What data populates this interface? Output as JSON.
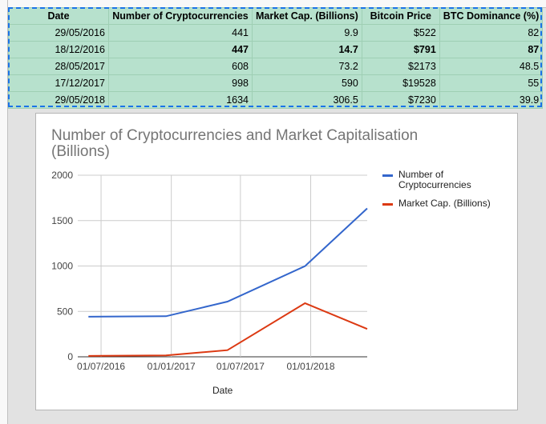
{
  "table": {
    "headers": [
      "Date",
      "Number of Cryptocurrencies",
      "Market Cap. (Billions)",
      "Bitcoin Price",
      "BTC Dominance (%)"
    ],
    "rows": [
      {
        "date": "29/05/2016",
        "num": "441",
        "mcap": "9.9",
        "price": "$522",
        "dom": "82",
        "bold": false
      },
      {
        "date": "18/12/2016",
        "num": "447",
        "mcap": "14.7",
        "price": "$791",
        "dom": "87",
        "bold": true
      },
      {
        "date": "28/05/2017",
        "num": "608",
        "mcap": "73.2",
        "price": "$2173",
        "dom": "48.5",
        "bold": false
      },
      {
        "date": "17/12/2017",
        "num": "998",
        "mcap": "590",
        "price": "$19528",
        "dom": "55",
        "bold": false
      },
      {
        "date": "29/05/2018",
        "num": "1634",
        "mcap": "306.5",
        "price": "$7230",
        "dom": "39.9",
        "bold": false
      }
    ]
  },
  "chart": {
    "title": "Number of Cryptocurrencies and Market Capitalisation (Billions)",
    "xlabel": "Date",
    "legend": [
      "Number of Cryptocurrencies",
      "Market Cap. (Billions)"
    ],
    "colors": {
      "series1": "#3366cc",
      "series2": "#dc3912"
    }
  },
  "chart_data": {
    "type": "line",
    "title": "Number of Cryptocurrencies and Market Capitalisation (Billions)",
    "xlabel": "Date",
    "ylabel": "",
    "ylim": [
      0,
      2000
    ],
    "yticks": [
      0,
      500,
      1000,
      1500,
      2000
    ],
    "xticks": [
      "01/07/2016",
      "01/01/2017",
      "01/07/2017",
      "01/01/2018"
    ],
    "x": [
      "2016-05-29",
      "2016-12-18",
      "2017-05-28",
      "2017-12-17",
      "2018-05-29"
    ],
    "series": [
      {
        "name": "Number of Cryptocurrencies",
        "values": [
          441,
          447,
          608,
          998,
          1634
        ]
      },
      {
        "name": "Market Cap. (Billions)",
        "values": [
          9.9,
          14.7,
          73.2,
          590,
          306.5
        ]
      }
    ],
    "legend_position": "right",
    "grid": true
  }
}
